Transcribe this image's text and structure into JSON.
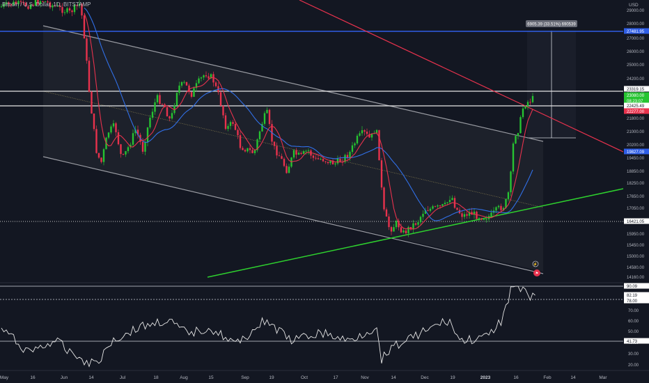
{
  "header": {
    "symbol_title": "Bitcoin / U.S. Dollar, 1D, BITSTAMP",
    "currency": "USD"
  },
  "colors": {
    "background": "#131722",
    "up": "#26c431",
    "down": "#e8324d",
    "ma_fast": "#e8324d",
    "ma_slow": "#3170e8",
    "blue_line": "#2f5ee6",
    "red_trend": "#e8324d",
    "green_trend": "#2ed12e",
    "channel": "#9a9ca3"
  },
  "price_axis": {
    "ticks": [
      "29000.00",
      "28000.00",
      "27000.00",
      "26000.00",
      "25000.00",
      "24200.00",
      "23400.00",
      "22600.00",
      "21800.00",
      "21000.00",
      "20200.00",
      "19450.00",
      "18850.00",
      "18250.00",
      "17650.00",
      "17050.00",
      "16450.00",
      "15950.00",
      "15450.00",
      "15000.00",
      "14580.00",
      "14160.00"
    ],
    "badges": [
      {
        "label": "27481.95",
        "bg": "#2f5ee6",
        "fg": "#ffffff"
      },
      {
        "label": "23319.15",
        "bg": "#ffffff",
        "fg": "#131722"
      },
      {
        "label": "23080.00",
        "bg": "#26c431",
        "fg": "#ffffff"
      },
      {
        "label": "08:23:07",
        "bg": "#26c431",
        "fg": "#ffffff"
      },
      {
        "label": "22425.49",
        "bg": "#ffffff",
        "fg": "#131722"
      },
      {
        "label": "22277.00",
        "bg": "#e8324d",
        "fg": "#ffffff"
      },
      {
        "label": "19827.09",
        "bg": "#2f5ee6",
        "fg": "#ffffff"
      },
      {
        "label": "16421.05",
        "bg": "#ffffff",
        "fg": "#131722"
      }
    ]
  },
  "measure_label": "6905.39 (33.51%) 690539",
  "rsi_axis": {
    "ticks": [
      "70.00",
      "60.00",
      "50.00",
      "40.00",
      "30.00",
      "20.00"
    ],
    "badges": [
      {
        "label": "90.09",
        "bg": "#ffffff",
        "fg": "#131722"
      },
      {
        "label": "82.19",
        "bg": "#ffffff",
        "fg": "#131722"
      },
      {
        "label": "78.00",
        "bg": "#ffffff",
        "fg": "#131722"
      },
      {
        "label": "41.73",
        "bg": "#ffffff",
        "fg": "#131722"
      }
    ]
  },
  "time_axis": {
    "labels": [
      "May",
      "16",
      "Jun",
      "14",
      "Jul",
      "18",
      "Aug",
      "15",
      "Sep",
      "19",
      "Oct",
      "17",
      "Nov",
      "14",
      "Dec",
      "19",
      "2023",
      "16",
      "Feb",
      "14",
      "Mar"
    ]
  },
  "icons": {
    "alert": "alert-bell-icon",
    "flag": "flag-icon"
  }
}
